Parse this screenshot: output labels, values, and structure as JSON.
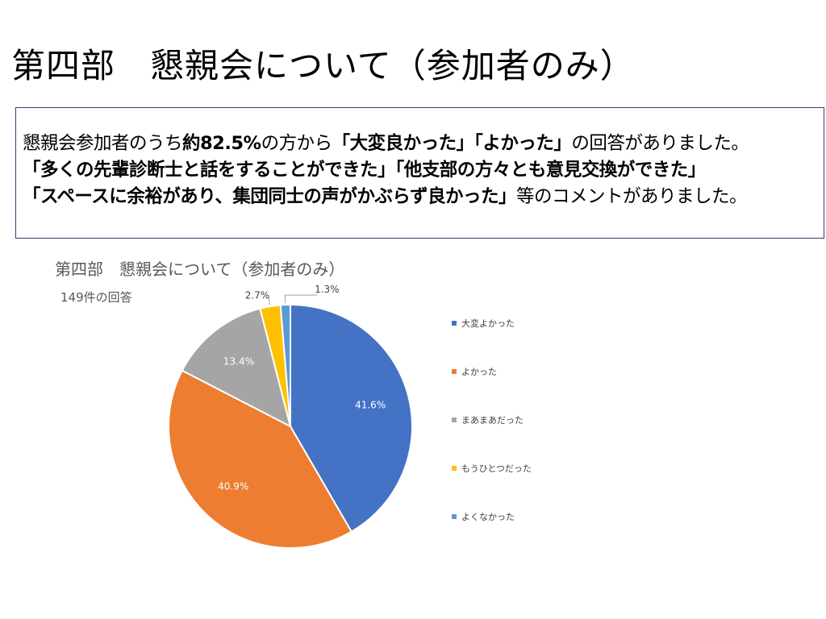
{
  "slide": {
    "title": "第四部　懇親会について（参加者のみ）"
  },
  "summary": {
    "line1_pre": "懇親会参加者のうち",
    "line1_bold1": "約82.5%",
    "line1_mid": "の方から",
    "line1_bold2": "「大変良かった」「よかった」",
    "line1_post": "の回答がありました。",
    "line2": "「多くの先輩診断士と話をすることができた」「他支部の方々とも意見交換ができた」",
    "line3_bold": "「スペースに余裕があり、集団同士の声がかぶらず良かった」",
    "line3_post": "等のコメントがありました。"
  },
  "chart_data": {
    "type": "pie",
    "title": "第四部　懇親会について（参加者のみ）",
    "subtitle": "149件の回答",
    "categories": [
      "大変よかった",
      "よかった",
      "まあまあだった",
      "もうひとつだった",
      "よくなかった"
    ],
    "values": [
      41.6,
      40.9,
      13.4,
      2.7,
      1.3
    ],
    "labels": [
      "41.6%",
      "40.9%",
      "13.4%",
      "2.7%",
      "1.3%"
    ],
    "colors": [
      "#4472c4",
      "#ed7d31",
      "#a5a5a5",
      "#ffc000",
      "#5b9bd5"
    ],
    "legend_position": "right"
  }
}
